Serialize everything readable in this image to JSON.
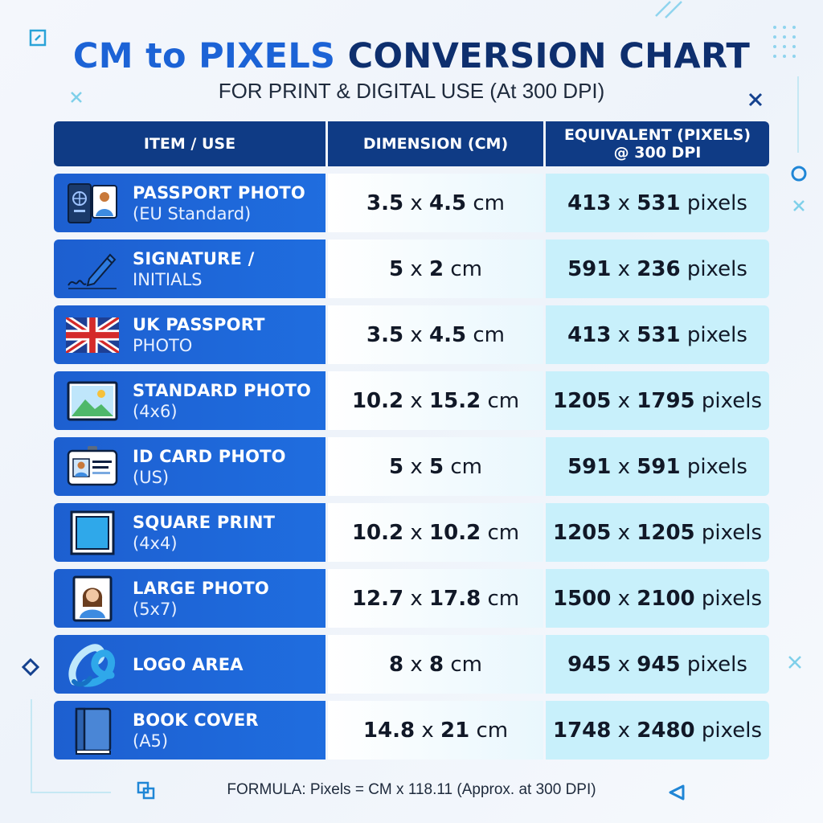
{
  "title": {
    "part1": "CM to PIXELS",
    "part2": "CONVERSION CHART"
  },
  "subtitle": "FOR PRINT & DIGITAL USE (At 300 DPI)",
  "colors": {
    "header_bg": "#0f3b85",
    "row_item_bg": "#1f6ddf",
    "pixel_cell_bg": "#c8f0fb",
    "title_accent": "#1c63d6",
    "title_dark": "#0e2f6e"
  },
  "header": {
    "item": "ITEM / USE",
    "dimension": "DIMENSION (CM)",
    "equivalent_line1": "EQUIVALENT (PIXELS)",
    "equivalent_line2": "@ 300 DPI"
  },
  "rows": [
    {
      "icon": "passport-icon",
      "label1": "PASSPORT PHOTO",
      "label2": "(EU Standard)",
      "dim_w": "3.5",
      "dim_h": "4.5",
      "dim_unit": "cm",
      "px_w": "413",
      "px_h": "531",
      "px_unit": "pixels"
    },
    {
      "icon": "pen-signature-icon",
      "label1": "SIGNATURE /",
      "label2": "INITIALS",
      "dim_w": "5",
      "dim_h": "2",
      "dim_unit": "cm",
      "px_w": "591",
      "px_h": "236",
      "px_unit": "pixels"
    },
    {
      "icon": "uk-flag-icon",
      "label1": "UK PASSPORT",
      "label2": "PHOTO",
      "dim_w": "3.5",
      "dim_h": "4.5",
      "dim_unit": "cm",
      "px_w": "413",
      "px_h": "531",
      "px_unit": "pixels"
    },
    {
      "icon": "landscape-image-icon",
      "label1": "STANDARD PHOTO",
      "label2": "(4x6)",
      "dim_w": "10.2",
      "dim_h": "15.2",
      "dim_unit": "cm",
      "px_w": "1205",
      "px_h": "1795",
      "px_unit": "pixels"
    },
    {
      "icon": "id-card-icon",
      "label1": "ID CARD PHOTO",
      "label2": "(US)",
      "dim_w": "5",
      "dim_h": "5",
      "dim_unit": "cm",
      "px_w": "591",
      "px_h": "591",
      "px_unit": "pixels"
    },
    {
      "icon": "square-frame-icon",
      "label1": "SQUARE PRINT",
      "label2": "(4x4)",
      "dim_w": "10.2",
      "dim_h": "10.2",
      "dim_unit": "cm",
      "px_w": "1205",
      "px_h": "1205",
      "px_unit": "pixels"
    },
    {
      "icon": "portrait-icon",
      "label1": "LARGE PHOTO",
      "label2": "(5x7)",
      "dim_w": "12.7",
      "dim_h": "17.8",
      "dim_unit": "cm",
      "px_w": "1500",
      "px_h": "2100",
      "px_unit": "pixels"
    },
    {
      "icon": "logo-icon",
      "label1": "LOGO AREA",
      "label2": "",
      "dim_w": "8",
      "dim_h": "8",
      "dim_unit": "cm",
      "px_w": "945",
      "px_h": "945",
      "px_unit": "pixels"
    },
    {
      "icon": "book-icon",
      "label1": "BOOK COVER",
      "label2": "(A5)",
      "dim_w": "14.8",
      "dim_h": "21",
      "dim_unit": "cm",
      "px_w": "1748",
      "px_h": "2480",
      "px_unit": "pixels"
    }
  ],
  "times": "x",
  "formula": "FORMULA: Pixels = CM x 118.11 (Approx. at 300 DPI)"
}
